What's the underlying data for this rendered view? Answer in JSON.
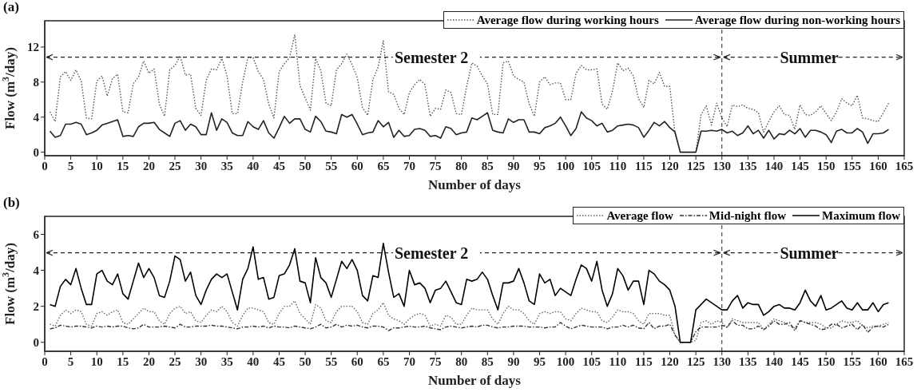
{
  "chart_data": [
    {
      "type": "line",
      "title": "(a)",
      "xlabel": "Number of days",
      "ylabel": "Flow (m$^{3}$/day)",
      "x": [
        1,
        2,
        3,
        4,
        5,
        6,
        7,
        8,
        9,
        10,
        11,
        12,
        13,
        14,
        15,
        16,
        17,
        18,
        19,
        20,
        21,
        22,
        23,
        24,
        25,
        26,
        27,
        28,
        29,
        30,
        31,
        32,
        33,
        34,
        35,
        36,
        37,
        38,
        39,
        40,
        41,
        42,
        43,
        44,
        45,
        46,
        47,
        48,
        49,
        50,
        51,
        52,
        53,
        54,
        55,
        56,
        57,
        58,
        59,
        60,
        61,
        62,
        63,
        64,
        65,
        66,
        67,
        68,
        69,
        70,
        71,
        72,
        73,
        74,
        75,
        76,
        77,
        78,
        79,
        80,
        81,
        82,
        83,
        84,
        85,
        86,
        87,
        88,
        89,
        90,
        91,
        92,
        93,
        94,
        95,
        96,
        97,
        98,
        99,
        100,
        101,
        102,
        103,
        104,
        105,
        106,
        107,
        108,
        109,
        110,
        111,
        112,
        113,
        114,
        115,
        116,
        117,
        118,
        119,
        120,
        121,
        122,
        123,
        124,
        125,
        126,
        127,
        128,
        129,
        130,
        131,
        132,
        133,
        134,
        135,
        136,
        137,
        138,
        139,
        140,
        141,
        142,
        143,
        144,
        145,
        146,
        147,
        148,
        149,
        150,
        151,
        152,
        153,
        154,
        155,
        156,
        157,
        158,
        159,
        160,
        161,
        162
      ],
      "series": [
        {
          "name": "Average flow during working hours",
          "color": "#555555",
          "line_style": "dotted",
          "values": [
            4.6,
            3.5,
            8.6,
            9.2,
            8.2,
            9.4,
            8.1,
            3.9,
            3.8,
            8.1,
            8.7,
            6.4,
            8.4,
            8.9,
            4.6,
            4.5,
            7.8,
            8.6,
            10.4,
            9.0,
            9.5,
            5.5,
            4.1,
            9.4,
            9.9,
            11.0,
            8.8,
            8.9,
            5.0,
            4.2,
            8.2,
            9.5,
            9.4,
            10.7,
            8.7,
            4.4,
            4.4,
            8.0,
            10.8,
            10.8,
            9.2,
            8.3,
            5.5,
            3.9,
            9.2,
            10.1,
            10.8,
            13.4,
            7.6,
            6.2,
            4.8,
            10.7,
            9.3,
            5.6,
            5.3,
            9.4,
            10.1,
            11.2,
            10.0,
            8.5,
            5.1,
            4.2,
            8.3,
            9.7,
            12.7,
            6.9,
            6.6,
            5.0,
            4.3,
            6.8,
            7.7,
            8.3,
            7.7,
            4.1,
            5.0,
            4.9,
            7.1,
            6.8,
            4.4,
            4.3,
            7.5,
            10.2,
            9.8,
            8.7,
            7.8,
            4.3,
            4.3,
            10.2,
            10.4,
            8.7,
            8.3,
            8.0,
            5.5,
            4.1,
            8.0,
            8.6,
            7.7,
            7.9,
            7.9,
            6.0,
            6.0,
            9.0,
            9.9,
            9.4,
            9.4,
            9.5,
            5.5,
            4.9,
            7.0,
            10.2,
            9.3,
            9.6,
            8.7,
            6.1,
            5.1,
            8.2,
            7.8,
            9.1,
            7.5,
            7.5,
            2.1,
            0,
            0,
            0,
            0,
            4.3,
            5.3,
            3.1,
            5.6,
            3.9,
            2.9,
            5.4,
            5.2,
            5.4,
            5.0,
            4.9,
            4.5,
            2.3,
            3.5,
            4.6,
            5.3,
            4.3,
            4.2,
            2.6,
            5.4,
            4.3,
            4.2,
            4.6,
            5.3,
            4.4,
            3.6,
            4.6,
            6.1,
            5.6,
            5.3,
            6.5,
            3.9,
            3.8,
            3.6,
            3.5,
            4.5,
            5.6
          ]
        },
        {
          "name": "Average flow during non-working hours",
          "color": "#222222",
          "line_style": "solid",
          "values": [
            2.4,
            1.7,
            1.9,
            3.2,
            3.2,
            3.4,
            3.2,
            2.0,
            2.2,
            2.5,
            3.1,
            3.3,
            3.5,
            3.7,
            1.8,
            1.9,
            1.8,
            2.9,
            3.3,
            3.3,
            3.4,
            2.6,
            2.2,
            1.8,
            3.3,
            3.6,
            2.5,
            3.2,
            2.9,
            2.0,
            2.0,
            4.5,
            2.5,
            3.8,
            3.4,
            2.2,
            1.9,
            1.9,
            3.5,
            2.9,
            2.6,
            3.6,
            2.2,
            1.6,
            2.8,
            4.1,
            3.3,
            3.8,
            3.8,
            2.6,
            2.3,
            4.1,
            3.5,
            2.4,
            2.3,
            2.1,
            4.3,
            4.0,
            4.3,
            3.2,
            2.0,
            2.2,
            2.3,
            3.6,
            2.9,
            3.4,
            1.7,
            2.5,
            1.8,
            1.9,
            2.6,
            2.7,
            2.5,
            1.8,
            1.9,
            1.6,
            2.9,
            2.7,
            2.0,
            2.2,
            2.3,
            3.9,
            3.7,
            4.1,
            4.5,
            2.5,
            2.3,
            2.2,
            3.8,
            3.4,
            3.7,
            3.7,
            2.3,
            2.3,
            2.1,
            2.8,
            3.0,
            3.3,
            4.0,
            3.0,
            1.9,
            2.7,
            4.6,
            3.9,
            3.6,
            3.0,
            3.3,
            2.3,
            2.5,
            3.0,
            3.1,
            3.2,
            3.1,
            2.8,
            1.7,
            2.5,
            3.4,
            3.0,
            3.5,
            2.8,
            2.3,
            0,
            0,
            0,
            0,
            2.4,
            2.4,
            2.5,
            2.4,
            2.6,
            2.2,
            2.4,
            1.9,
            2.2,
            3.0,
            2.1,
            2.5,
            1.6,
            2.5,
            1.5,
            2.1,
            2.0,
            2.5,
            2.1,
            2.7,
            1.7,
            2.5,
            2.5,
            2.3,
            2.0,
            1.1,
            2.4,
            2.6,
            2.2,
            2.2,
            2.7,
            2.3,
            1.0,
            2.1,
            2.1,
            2.2,
            2.6
          ]
        }
      ],
      "xlim": [
        0,
        165
      ],
      "xticks": [
        0,
        5,
        10,
        15,
        20,
        25,
        30,
        35,
        40,
        45,
        50,
        55,
        60,
        65,
        70,
        75,
        80,
        85,
        90,
        95,
        100,
        105,
        110,
        115,
        120,
        125,
        130,
        135,
        140,
        145,
        150,
        155,
        160,
        165
      ],
      "ylim": [
        -0.4,
        15
      ],
      "yticks": [
        0,
        4,
        8,
        12
      ],
      "ref_lines": [
        {
          "axis": "x",
          "value": 130,
          "line_style": "dashed"
        }
      ],
      "annotations": [
        "Semester 2",
        "Summer"
      ],
      "legend": "top right"
    },
    {
      "type": "line",
      "title": "(b)",
      "xlabel": "Number of days",
      "ylabel": "Flow (m$^{3}$/day)",
      "x": [
        1,
        2,
        3,
        4,
        5,
        6,
        7,
        8,
        9,
        10,
        11,
        12,
        13,
        14,
        15,
        16,
        17,
        18,
        19,
        20,
        21,
        22,
        23,
        24,
        25,
        26,
        27,
        28,
        29,
        30,
        31,
        32,
        33,
        34,
        35,
        36,
        37,
        38,
        39,
        40,
        41,
        42,
        43,
        44,
        45,
        46,
        47,
        48,
        49,
        50,
        51,
        52,
        53,
        54,
        55,
        56,
        57,
        58,
        59,
        60,
        61,
        62,
        63,
        64,
        65,
        66,
        67,
        68,
        69,
        70,
        71,
        72,
        73,
        74,
        75,
        76,
        77,
        78,
        79,
        80,
        81,
        82,
        83,
        84,
        85,
        86,
        87,
        88,
        89,
        90,
        91,
        92,
        93,
        94,
        95,
        96,
        97,
        98,
        99,
        100,
        101,
        102,
        103,
        104,
        105,
        106,
        107,
        108,
        109,
        110,
        111,
        112,
        113,
        114,
        115,
        116,
        117,
        118,
        119,
        120,
        121,
        122,
        123,
        124,
        125,
        126,
        127,
        128,
        129,
        130,
        131,
        132,
        133,
        134,
        135,
        136,
        137,
        138,
        139,
        140,
        141,
        142,
        143,
        144,
        145,
        146,
        147,
        148,
        149,
        150,
        151,
        152,
        153,
        154,
        155,
        156,
        157,
        158,
        159,
        160,
        161,
        162
      ],
      "series": [
        {
          "name": "Average flow",
          "color": "#666666",
          "line_style": "dotted",
          "values": [
            1.0,
            0.9,
            1.5,
            1.8,
            1.6,
            1.8,
            1.7,
            1.0,
            0.9,
            1.6,
            1.7,
            1.5,
            1.7,
            1.8,
            1.1,
            1.0,
            1.3,
            1.6,
            1.9,
            1.7,
            1.7,
            1.2,
            1.0,
            1.6,
            1.9,
            2.0,
            1.6,
            1.7,
            1.2,
            1.1,
            1.5,
            1.8,
            1.7,
            2.0,
            1.7,
            1.1,
            0.9,
            1.5,
            1.9,
            1.9,
            1.8,
            1.7,
            1.1,
            1.0,
            1.6,
            2.0,
            2.0,
            2.3,
            1.6,
            1.3,
            1.0,
            2.1,
            1.9,
            1.2,
            1.1,
            1.7,
            2.0,
            2.0,
            2.0,
            1.7,
            1.1,
            1.0,
            1.6,
            1.8,
            2.2,
            1.5,
            1.3,
            1.2,
            1.0,
            1.3,
            1.5,
            1.6,
            1.5,
            0.9,
            1.0,
            0.9,
            1.5,
            1.4,
            1.0,
            1.0,
            1.5,
            1.9,
            1.8,
            1.8,
            1.8,
            1.3,
            1.0,
            1.6,
            2.0,
            1.8,
            1.8,
            1.6,
            1.2,
            1.0,
            1.6,
            1.7,
            1.6,
            1.7,
            1.7,
            1.3,
            1.2,
            1.6,
            1.9,
            1.8,
            1.7,
            1.7,
            1.2,
            1.1,
            1.4,
            1.8,
            1.7,
            1.7,
            1.6,
            1.2,
            1.0,
            1.6,
            1.6,
            1.6,
            1.5,
            1.5,
            0.4,
            0,
            0,
            0,
            0.1,
            1.1,
            1.2,
            1.0,
            1.2,
            1.1,
            0.8,
            1.3,
            1.2,
            1.1,
            1.1,
            1.1,
            1.1,
            0.7,
            1.0,
            1.3,
            1.2,
            1.1,
            0.9,
            0.8,
            1.2,
            1.1,
            1.1,
            1.1,
            1.0,
            0.8,
            0.8,
            1.0,
            1.2,
            1.1,
            1.1,
            1.2,
            0.9,
            0.8,
            0.9,
            0.9,
            1.0,
            1.1
          ]
        },
        {
          "name": "Mid-night flow",
          "color": "#333333",
          "line_style": "dashed",
          "values": [
            0.75,
            0.8,
            0.95,
            0.9,
            0.85,
            0.9,
            0.9,
            0.85,
            0.8,
            0.9,
            0.85,
            0.9,
            0.85,
            0.9,
            0.9,
            0.8,
            0.75,
            0.8,
            1.0,
            0.85,
            0.85,
            0.85,
            0.9,
            0.85,
            0.8,
            1.0,
            0.85,
            0.85,
            0.9,
            0.9,
            0.9,
            0.95,
            0.9,
            0.9,
            0.85,
            0.8,
            0.75,
            0.85,
            0.85,
            0.9,
            0.85,
            0.9,
            0.8,
            0.9,
            0.85,
            0.85,
            0.8,
            0.9,
            0.85,
            0.8,
            0.75,
            0.85,
            1.0,
            0.8,
            0.85,
            1.0,
            0.85,
            0.95,
            0.9,
            0.95,
            0.85,
            0.8,
            0.9,
            0.9,
            0.85,
            0.65,
            0.8,
            0.8,
            0.85,
            0.9,
            0.85,
            0.85,
            0.9,
            0.8,
            0.75,
            0.7,
            0.85,
            0.9,
            0.85,
            0.8,
            0.85,
            0.9,
            0.85,
            0.95,
            0.95,
            0.85,
            0.8,
            0.85,
            0.85,
            0.9,
            0.9,
            0.9,
            0.85,
            0.85,
            0.85,
            0.8,
            0.85,
            0.85,
            1.1,
            0.9,
            0.75,
            0.85,
            0.95,
            0.9,
            0.85,
            0.85,
            0.85,
            0.75,
            0.85,
            0.85,
            0.95,
            0.85,
            0.95,
            0.8,
            0.75,
            1.1,
            0.75,
            0.9,
            0.9,
            1.0,
            0.4,
            0,
            0,
            0,
            0.6,
            0.85,
            0.85,
            0.85,
            0.85,
            0.95,
            0.85,
            1.2,
            0.95,
            0.95,
            0.75,
            0.75,
            0.9,
            0.7,
            0.9,
            1.2,
            1.0,
            1.0,
            1.1,
            0.65,
            1.2,
            1.1,
            1.0,
            0.9,
            0.7,
            0.75,
            1.0,
            1.0,
            0.8,
            0.9,
            1.0,
            0.7,
            1.0,
            0.55,
            0.85,
            0.9,
            0.85,
            1.0
          ]
        },
        {
          "name": "Maximum flow",
          "color": "#000000",
          "line_style": "solid",
          "values": [
            2.1,
            2.0,
            3.1,
            3.5,
            3.2,
            4.1,
            3.0,
            2.1,
            2.1,
            3.8,
            4.0,
            3.4,
            3.2,
            3.8,
            2.7,
            2.4,
            3.4,
            4.4,
            3.6,
            4.1,
            3.6,
            2.6,
            2.5,
            3.4,
            4.8,
            4.6,
            3.4,
            3.9,
            2.6,
            2.1,
            2.9,
            3.5,
            3.8,
            3.6,
            3.8,
            2.8,
            1.8,
            3.5,
            4.1,
            5.3,
            3.5,
            3.6,
            2.4,
            2.5,
            3.7,
            3.8,
            4.3,
            5.2,
            3.4,
            3.3,
            2.2,
            4.7,
            3.6,
            3.3,
            2.5,
            3.5,
            4.5,
            4.1,
            4.6,
            4.0,
            2.6,
            2.3,
            3.7,
            3.6,
            5.5,
            3.9,
            2.5,
            2.7,
            2.0,
            4.0,
            3.2,
            3.3,
            3.0,
            2.2,
            2.9,
            3.0,
            3.4,
            2.8,
            2.2,
            2.1,
            3.5,
            3.4,
            3.5,
            3.9,
            3.5,
            2.6,
            1.8,
            3.3,
            3.3,
            3.4,
            4.1,
            3.3,
            2.3,
            2.1,
            3.8,
            3.3,
            3.5,
            2.6,
            3.0,
            2.8,
            2.6,
            3.5,
            4.3,
            4.1,
            3.4,
            4.5,
            2.9,
            2.0,
            2.7,
            4.1,
            3.7,
            2.9,
            3.4,
            3.4,
            2.1,
            4.0,
            3.8,
            3.4,
            3.2,
            2.9,
            2.0,
            0,
            0,
            0,
            1.8,
            2.1,
            2.4,
            2.2,
            2.0,
            1.8,
            1.8,
            2.3,
            2.6,
            1.9,
            2.2,
            2.1,
            2.1,
            1.5,
            1.7,
            2.0,
            2.1,
            1.9,
            1.9,
            1.8,
            2.2,
            2.9,
            2.3,
            2.0,
            2.6,
            1.8,
            1.9,
            2.1,
            2.3,
            1.9,
            1.8,
            2.2,
            1.8,
            1.8,
            2.2,
            1.7,
            2.1,
            2.2
          ]
        }
      ],
      "xlim": [
        0,
        165
      ],
      "xticks": [
        0,
        5,
        10,
        15,
        20,
        25,
        30,
        35,
        40,
        45,
        50,
        55,
        60,
        65,
        70,
        75,
        80,
        85,
        90,
        95,
        100,
        105,
        110,
        115,
        120,
        125,
        130,
        135,
        140,
        145,
        150,
        155,
        160,
        165
      ],
      "ylim": [
        -0.5,
        7
      ],
      "yticks": [
        0,
        2,
        4,
        6
      ],
      "ref_lines": [
        {
          "axis": "x",
          "value": 130,
          "line_style": "dashed"
        }
      ],
      "annotations": [
        "Semester 2",
        "Summer"
      ],
      "legend": "top right"
    }
  ]
}
